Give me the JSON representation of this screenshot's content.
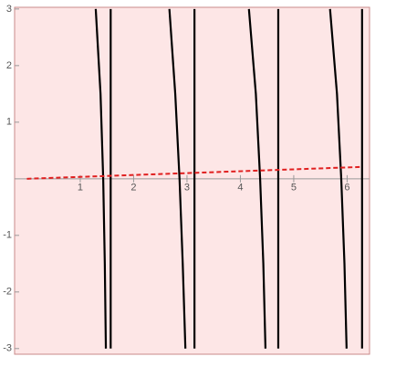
{
  "chart_data": {
    "type": "line",
    "xlim": [
      -0.23,
      6.42
    ],
    "ylim": [
      -3.1,
      3.03
    ],
    "xticks": [
      1,
      2,
      3,
      4,
      5,
      6
    ],
    "yticks": [
      -3,
      -2,
      -1,
      1,
      2,
      3
    ],
    "series": [
      {
        "color": "#000000",
        "style": "solid",
        "x": [
          1.29,
          1.38,
          1.43,
          1.46,
          1.48,
          null,
          1.57,
          1.57,
          null,
          2.67,
          2.78,
          2.86,
          2.92,
          2.97,
          null,
          3.14,
          3.14,
          null,
          4.16,
          4.29,
          4.37,
          4.43,
          4.47,
          null,
          4.71,
          4.71,
          null,
          5.68,
          5.81,
          5.89,
          5.95,
          5.99,
          null,
          6.28,
          6.28
        ],
        "values": [
          3,
          1.5,
          0,
          -1.5,
          -3,
          null,
          3,
          -3,
          null,
          3,
          1.5,
          0,
          -1.5,
          -3,
          null,
          3,
          -3,
          null,
          3,
          1.5,
          0,
          -1.5,
          -3,
          null,
          3,
          -3,
          null,
          3,
          1.5,
          0,
          -1.5,
          -3,
          null,
          3,
          -3
        ]
      },
      {
        "color": "#e02020",
        "style": "dashed",
        "x": [
          0,
          6.28
        ],
        "values": [
          0,
          0.21
        ]
      }
    ]
  }
}
